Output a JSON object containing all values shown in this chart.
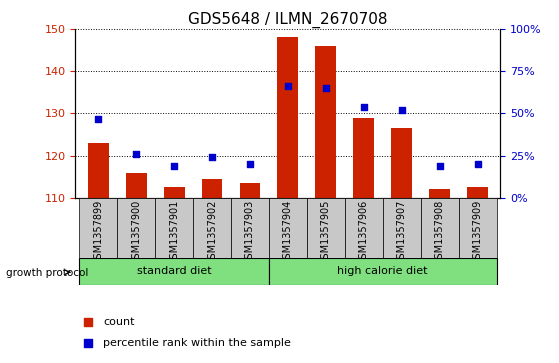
{
  "title": "GDS5648 / ILMN_2670708",
  "samples": [
    "GSM1357899",
    "GSM1357900",
    "GSM1357901",
    "GSM1357902",
    "GSM1357903",
    "GSM1357904",
    "GSM1357905",
    "GSM1357906",
    "GSM1357907",
    "GSM1357908",
    "GSM1357909"
  ],
  "count_values": [
    123,
    116,
    112.5,
    114.5,
    113.5,
    148,
    146,
    129,
    126.5,
    112,
    112.5
  ],
  "percentile_values": [
    47,
    26,
    19,
    24,
    20,
    66,
    65,
    54,
    52,
    19,
    20
  ],
  "ylim_left": [
    110,
    150
  ],
  "ylim_right": [
    0,
    100
  ],
  "yticks_left": [
    110,
    120,
    130,
    140,
    150
  ],
  "yticks_right": [
    0,
    25,
    50,
    75,
    100
  ],
  "ytick_labels_right": [
    "0%",
    "25%",
    "50%",
    "75%",
    "100%"
  ],
  "bar_color": "#cc2200",
  "dot_color": "#0000cc",
  "grid_color": "#000000",
  "left_tick_color": "#cc2200",
  "right_tick_color": "#0000cc",
  "tick_bg_color": "#c8c8c8",
  "group_bg_color": "#80e080",
  "group_label1": "standard diet",
  "group_label2": "high calorie diet",
  "growth_protocol_label": "growth protocol",
  "legend_count": "count",
  "legend_pct": "percentile rank within the sample",
  "title_fontsize": 11,
  "axis_fontsize": 8,
  "tick_fontsize": 7,
  "group_fontsize": 8,
  "legend_fontsize": 8
}
